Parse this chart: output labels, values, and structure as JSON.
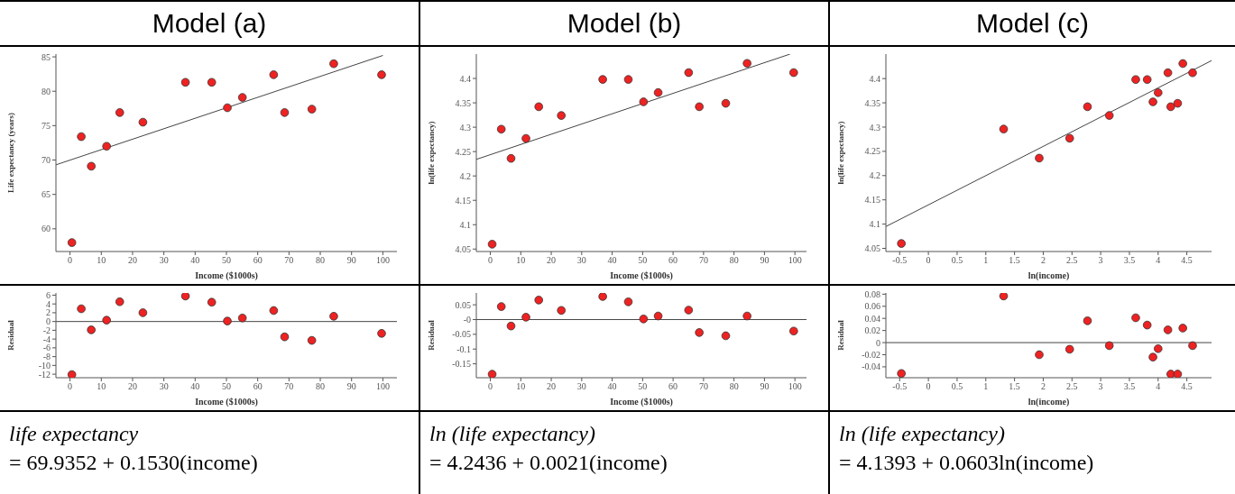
{
  "chart_data": [
    {
      "type": "scatter",
      "title": "Model (a)",
      "xlabel": "Income ($1000s)",
      "ylabel": "Life expectancy (years)",
      "xlim": [
        -4.5,
        104.5
      ],
      "xticks": [
        0,
        10,
        20,
        30,
        40,
        50,
        60,
        70,
        80,
        90,
        100
      ],
      "ylim": [
        56.7,
        85.4
      ],
      "yticks": [
        60,
        65,
        70,
        75,
        80,
        85
      ],
      "marker": "circle",
      "series": [
        {
          "type": "scatter",
          "color": "#ee2222",
          "x": [
            0.6,
            3.6,
            6.8,
            11.7,
            15.9,
            23.3,
            36.9,
            45.3,
            50.3,
            55.1,
            65.1,
            68.6,
            77.3,
            84.3,
            99.6
          ],
          "values": [
            58.0,
            73.4,
            69.1,
            72.0,
            76.9,
            75.5,
            81.3,
            81.3,
            77.6,
            79.1,
            82.4,
            76.9,
            77.4,
            84.0,
            82.4
          ]
        },
        {
          "type": "line",
          "color": "#444444",
          "x": [
            -4.5,
            100
          ],
          "values": [
            69.3,
            85.2
          ],
          "marker": "none"
        }
      ]
    },
    {
      "type": "scatter",
      "title": "Model (b)",
      "xlabel": "Income ($1000s)",
      "ylabel": "ln(life expectancy)",
      "xlim": [
        -4.6,
        103.8
      ],
      "xticks": [
        0,
        10,
        20,
        30,
        40,
        50,
        60,
        70,
        80,
        90,
        100
      ],
      "ylim": [
        4.045,
        4.45
      ],
      "yticks": [
        4.05,
        4.1,
        4.15,
        4.2,
        4.25,
        4.3,
        4.35,
        4.4
      ],
      "marker": "circle",
      "series": [
        {
          "type": "scatter",
          "color": "#ee2222",
          "x": [
            0.6,
            3.6,
            6.8,
            11.7,
            15.9,
            23.3,
            36.9,
            45.3,
            50.3,
            55.1,
            65.1,
            68.6,
            77.3,
            84.3,
            99.6
          ],
          "values": [
            4.06,
            4.296,
            4.236,
            4.277,
            4.342,
            4.324,
            4.398,
            4.398,
            4.352,
            4.371,
            4.412,
            4.342,
            4.349,
            4.431,
            4.412
          ]
        },
        {
          "type": "line",
          "color": "#444444",
          "x": [
            -4.6,
            98.4
          ],
          "values": [
            4.234,
            4.45
          ],
          "marker": "none"
        }
      ]
    },
    {
      "type": "scatter",
      "title": "Model (c)",
      "xlabel": "ln(income)",
      "ylabel": "ln(life expectancy)",
      "xlim": [
        -0.74,
        4.93
      ],
      "xticks": [
        -0.5,
        0,
        0.5,
        1,
        1.5,
        2,
        2.5,
        3,
        3.5,
        4,
        4.5
      ],
      "ylim": [
        4.0435,
        4.4505
      ],
      "yticks": [
        4.05,
        4.1,
        4.15,
        4.2,
        4.25,
        4.3,
        4.35,
        4.4
      ],
      "marker": "circle",
      "series": [
        {
          "type": "scatter",
          "color": "#ee2222",
          "x": [
            -0.47,
            1.31,
            1.93,
            2.46,
            2.77,
            3.15,
            3.61,
            3.81,
            3.91,
            4.0,
            4.17,
            4.22,
            4.34,
            4.43,
            4.6
          ],
          "values": [
            4.06,
            4.296,
            4.236,
            4.277,
            4.342,
            4.324,
            4.398,
            4.398,
            4.352,
            4.371,
            4.412,
            4.342,
            4.349,
            4.431,
            4.412
          ]
        },
        {
          "type": "line",
          "color": "#444444",
          "x": [
            -0.74,
            4.93
          ],
          "values": [
            4.095,
            4.437
          ],
          "marker": "none"
        }
      ]
    },
    {
      "type": "scatter",
      "xlabel": "Income ($1000s)",
      "ylabel": "Residual",
      "xlim": [
        -4.5,
        104.5
      ],
      "xticks": [
        0,
        10,
        20,
        30,
        40,
        50,
        60,
        70,
        80,
        90,
        100
      ],
      "ylim": [
        -12.8,
        6.5
      ],
      "yticks": [
        -12,
        -10,
        -8,
        -6,
        -4,
        -2,
        0,
        2,
        4,
        6
      ],
      "marker": "circle",
      "ref_lines": [
        {
          "axis": "y",
          "value": 0,
          "color": "#444444"
        }
      ],
      "series": [
        {
          "type": "scatter",
          "color": "#ee2222",
          "x": [
            0.6,
            3.6,
            6.8,
            11.7,
            15.9,
            23.3,
            36.9,
            45.3,
            50.3,
            55.1,
            65.1,
            68.6,
            77.3,
            84.3,
            99.6
          ],
          "values": [
            -12.1,
            2.9,
            -1.9,
            0.3,
            4.5,
            2.0,
            5.8,
            4.4,
            0.1,
            0.8,
            2.5,
            -3.5,
            -4.3,
            1.2,
            -2.7
          ]
        }
      ]
    },
    {
      "type": "scatter",
      "xlabel": "Income ($1000s)",
      "ylabel": "Residual",
      "xlim": [
        -4.6,
        103.8
      ],
      "xticks": [
        0,
        10,
        20,
        30,
        40,
        50,
        60,
        70,
        80,
        90,
        100
      ],
      "ylim": [
        -0.197,
        0.09
      ],
      "yticks": [
        -0.15,
        -0.1,
        -0.05,
        {
          "value": 0,
          "label": "-0"
        },
        0.05
      ],
      "marker": "circle",
      "ref_lines": [
        {
          "axis": "y",
          "value": 0,
          "color": "#444444"
        }
      ],
      "series": [
        {
          "type": "scatter",
          "color": "#ee2222",
          "x": [
            0.6,
            3.6,
            6.8,
            11.7,
            15.9,
            23.3,
            36.9,
            45.3,
            50.3,
            55.1,
            65.1,
            68.6,
            77.3,
            84.3,
            99.6
          ],
          "values": [
            -0.185,
            0.044,
            -0.022,
            0.008,
            0.066,
            0.031,
            0.078,
            0.06,
            0.002,
            0.012,
            0.032,
            -0.044,
            -0.055,
            0.012,
            -0.039
          ]
        }
      ]
    },
    {
      "type": "scatter",
      "xlabel": "ln(income)",
      "ylabel": "Residual",
      "xlim": [
        -0.74,
        4.93
      ],
      "xticks": [
        -0.5,
        0,
        0.5,
        1,
        1.5,
        2,
        2.5,
        3,
        3.5,
        4,
        4.5
      ],
      "ylim": [
        -0.058,
        0.082
      ],
      "yticks": [
        -0.04,
        -0.02,
        0,
        0.02,
        0.04,
        0.06,
        0.08
      ],
      "marker": "circle",
      "ref_lines": [
        {
          "axis": "y",
          "value": 0,
          "color": "#444444"
        }
      ],
      "series": [
        {
          "type": "scatter",
          "color": "#ee2222",
          "x": [
            -0.47,
            1.31,
            1.93,
            2.46,
            2.77,
            3.15,
            3.61,
            3.81,
            3.91,
            4.0,
            4.17,
            4.22,
            4.34,
            4.43,
            4.6
          ],
          "values": [
            -0.051,
            0.077,
            -0.02,
            -0.011,
            0.036,
            -0.005,
            0.041,
            0.029,
            -0.024,
            -0.01,
            0.021,
            -0.052,
            -0.052,
            0.024,
            -0.005
          ]
        }
      ]
    },
    {
      "type": "other",
      "annotations": [
        "life expectancy",
        "= 69.9352 + 0.1530(income)"
      ]
    },
    {
      "type": "other",
      "annotations": [
        "ln (life expectancy)",
        "= 4.2436 + 0.0021(income)"
      ]
    },
    {
      "type": "other",
      "annotations": [
        "ln (life expectancy)",
        "= 4.1393 + 0.0603ln(income)"
      ]
    }
  ]
}
